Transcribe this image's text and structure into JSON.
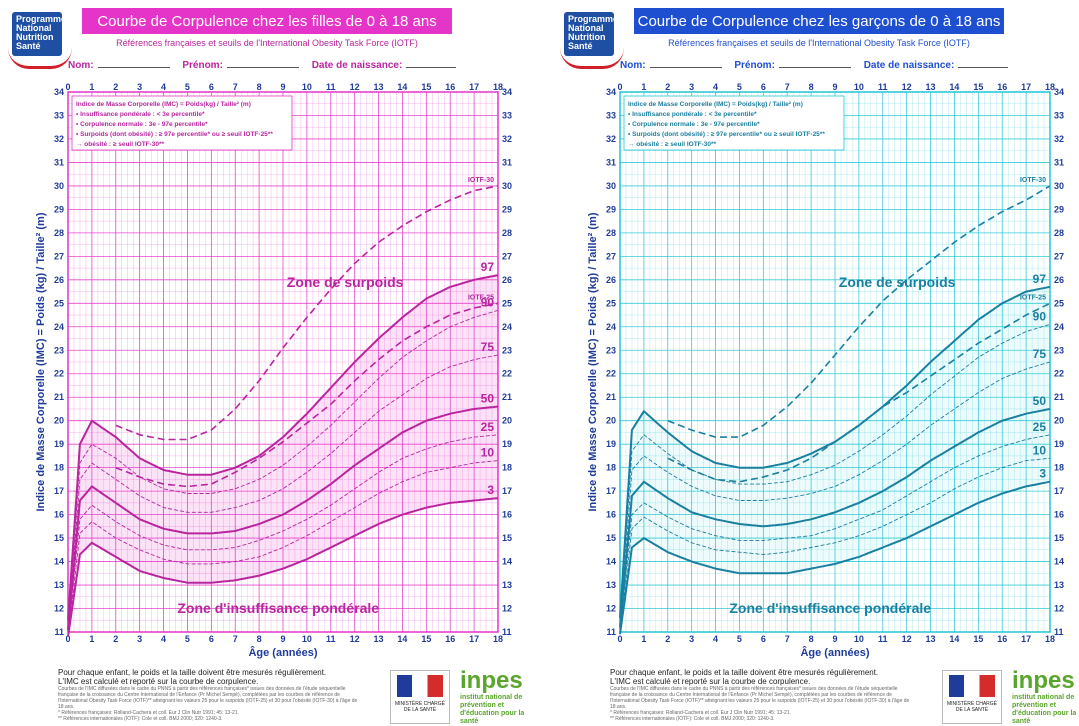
{
  "colors": {
    "girls": "#e535c8",
    "boys": "#22c6d6",
    "girls_dark": "#b8259e",
    "boys_dark": "#1a7fa0",
    "logo_blue": "#1f4fa3"
  },
  "common": {
    "logo_lines": [
      "Programme",
      "National",
      "Nutrition",
      "Santé"
    ],
    "subtitle": "Références françaises et seuils de l'International Obesity Task Force (IOTF)",
    "nom": "Nom:",
    "prenom": "Prénom:",
    "date_naissance": "Date de naissance:",
    "footer_main_1": "Pour chaque enfant, le poids et la taille doivent être mesurés régulièrement.",
    "footer_main_2": "L'IMC est calculé et reporté sur la courbe de corpulence.",
    "footer_small": "Courbes de l'IMC diffusées dans le cadre du PNNS à partir des références françaises* issues des données de l'étude séquentielle française de la croissance du Centre International de l'Enfance (Pr Michel Sempé), complétées par les courbes de référence de l'International Obesity Task Force (IOTF)** atteignant les valeurs 25 pour le surpoids (IOTF-25) et 30 pour l'obésité (IOTF-30) à l'âge de 18 ans.",
    "footer_ref1": "* Références françaises: Rolland-Cachera et coll. Eur J Clin Nutr 1991; 45: 13-21.",
    "footer_ref2": "** Références internationales (IOTF): Cole et coll. BMJ 2000; 320: 1240-3.",
    "flag_text": "MINISTÈRE CHARGÉ DE LA SANTÉ",
    "inpes_label": "inpes",
    "inpes_tag": "institut national de prévention et d'éducation pour la santé"
  },
  "chart_data": [
    {
      "type": "line",
      "title": "Courbe de Corpulence chez les filles de 0 à 18 ans",
      "xlabel": "Âge (années)",
      "ylabel": "Indice de Masse Corporelle (IMC) = Poids (kg) / Taille² (m)",
      "xlim": [
        0,
        18
      ],
      "ylim": [
        11,
        34
      ],
      "x_ticks": [
        0,
        1,
        2,
        3,
        4,
        5,
        6,
        7,
        8,
        9,
        10,
        11,
        12,
        13,
        14,
        15,
        16,
        17,
        18
      ],
      "y_ticks": [
        11,
        12,
        13,
        14,
        15,
        16,
        17,
        18,
        19,
        20,
        21,
        22,
        23,
        24,
        25,
        26,
        27,
        28,
        29,
        30,
        31,
        32,
        33,
        34
      ],
      "legend": [
        "Indice de Masse Corporelle (IMC) = Poids(kg) / Taille² (m)",
        "• Insuffisance pondérale : < 3e percentile*",
        "• Corpulence normale : 3e - 97e percentile*",
        "• Surpoids (dont obésité) : ≥ 97e percentile* ou ≥ seuil IOTF-25**",
        "→ obésité : ≥ seuil IOTF-30**"
      ],
      "zone_over": "Zone de surpoids",
      "zone_under": "Zone d'insuffisance pondérale",
      "x": [
        0,
        0.5,
        1,
        2,
        3,
        4,
        5,
        6,
        7,
        8,
        9,
        10,
        11,
        12,
        13,
        14,
        15,
        16,
        17,
        18
      ],
      "series": [
        {
          "name": "97",
          "style": "solid",
          "values": [
            11.5,
            19.0,
            20.0,
            19.3,
            18.4,
            17.9,
            17.7,
            17.7,
            18.0,
            18.5,
            19.3,
            20.3,
            21.4,
            22.5,
            23.5,
            24.4,
            25.2,
            25.7,
            26.0,
            26.2
          ]
        },
        {
          "name": "90",
          "style": "dash",
          "values": [
            11.3,
            18.2,
            19.0,
            18.4,
            17.6,
            17.1,
            16.9,
            16.9,
            17.1,
            17.5,
            18.1,
            18.9,
            19.8,
            20.8,
            21.8,
            22.7,
            23.4,
            24.0,
            24.4,
            24.7
          ]
        },
        {
          "name": "75",
          "style": "dash",
          "values": [
            11.2,
            17.5,
            18.2,
            17.5,
            16.8,
            16.3,
            16.1,
            16.1,
            16.3,
            16.6,
            17.1,
            17.8,
            18.6,
            19.5,
            20.4,
            21.1,
            21.8,
            22.3,
            22.6,
            22.8
          ]
        },
        {
          "name": "50",
          "style": "solid",
          "values": [
            11.1,
            16.6,
            17.2,
            16.5,
            15.8,
            15.4,
            15.2,
            15.2,
            15.3,
            15.6,
            16.0,
            16.6,
            17.3,
            18.1,
            18.8,
            19.5,
            20.0,
            20.3,
            20.5,
            20.6
          ]
        },
        {
          "name": "25",
          "style": "dash",
          "values": [
            11.0,
            15.8,
            16.4,
            15.7,
            15.1,
            14.7,
            14.5,
            14.5,
            14.6,
            14.9,
            15.3,
            15.8,
            16.4,
            17.1,
            17.8,
            18.4,
            18.8,
            19.1,
            19.3,
            19.4
          ]
        },
        {
          "name": "10",
          "style": "dash",
          "values": [
            10.9,
            15.2,
            15.7,
            15.0,
            14.5,
            14.1,
            13.9,
            13.9,
            14.0,
            14.2,
            14.6,
            15.1,
            15.7,
            16.3,
            16.9,
            17.4,
            17.8,
            18.0,
            18.2,
            18.3
          ]
        },
        {
          "name": "3",
          "style": "solid",
          "values": [
            10.8,
            14.3,
            14.8,
            14.2,
            13.6,
            13.3,
            13.1,
            13.1,
            13.2,
            13.4,
            13.7,
            14.1,
            14.6,
            15.1,
            15.6,
            16.0,
            16.3,
            16.5,
            16.6,
            16.7
          ]
        }
      ],
      "iotf": [
        {
          "name": "IOTF-30",
          "x": [
            2,
            3,
            4,
            5,
            6,
            7,
            8,
            9,
            10,
            11,
            12,
            13,
            14,
            15,
            16,
            17,
            18
          ],
          "values": [
            19.8,
            19.4,
            19.2,
            19.2,
            19.6,
            20.5,
            21.7,
            23.1,
            24.4,
            25.6,
            26.7,
            27.6,
            28.3,
            28.9,
            29.4,
            29.8,
            30.0
          ]
        },
        {
          "name": "IOTF-25",
          "x": [
            2,
            3,
            4,
            5,
            6,
            7,
            8,
            9,
            10,
            11,
            12,
            13,
            14,
            15,
            16,
            17,
            18
          ],
          "values": [
            18.0,
            17.6,
            17.3,
            17.2,
            17.3,
            17.8,
            18.4,
            19.1,
            19.9,
            20.7,
            21.7,
            22.6,
            23.4,
            24.0,
            24.5,
            24.8,
            25.0
          ]
        }
      ]
    },
    {
      "type": "line",
      "title": "Courbe de Corpulence chez les garçons de 0 à 18 ans",
      "xlabel": "Âge (années)",
      "ylabel": "Indice de Masse Corporelle (IMC) = Poids (kg) / Taille² (m)",
      "xlim": [
        0,
        18
      ],
      "ylim": [
        11,
        34
      ],
      "x_ticks": [
        0,
        1,
        2,
        3,
        4,
        5,
        6,
        7,
        8,
        9,
        10,
        11,
        12,
        13,
        14,
        15,
        16,
        17,
        18
      ],
      "y_ticks": [
        11,
        12,
        13,
        14,
        15,
        16,
        17,
        18,
        19,
        20,
        21,
        22,
        23,
        24,
        25,
        26,
        27,
        28,
        29,
        30,
        31,
        32,
        33,
        34
      ],
      "legend": [
        "Indice de Masse Corporelle (IMC) = Poids(kg) / Taille² (m)",
        "• Insuffisance pondérale : < 3e percentile*",
        "• Corpulence normale : 3e - 97e percentile*",
        "• Surpoids (dont obésité) : ≥ 97e percentile* ou ≥ seuil IOTF-25**",
        "→ obésité : ≥ seuil IOTF-30**"
      ],
      "zone_over": "Zone de surpoids",
      "zone_under": "Zone d'insuffisance pondérale",
      "x": [
        0,
        0.5,
        1,
        2,
        3,
        4,
        5,
        6,
        7,
        8,
        9,
        10,
        11,
        12,
        13,
        14,
        15,
        16,
        17,
        18
      ],
      "series": [
        {
          "name": "97",
          "style": "solid",
          "values": [
            11.6,
            19.6,
            20.4,
            19.5,
            18.7,
            18.2,
            18.0,
            18.0,
            18.2,
            18.6,
            19.1,
            19.8,
            20.6,
            21.5,
            22.5,
            23.4,
            24.3,
            25.0,
            25.5,
            25.7
          ]
        },
        {
          "name": "90",
          "style": "dash",
          "values": [
            11.4,
            18.7,
            19.4,
            18.6,
            17.9,
            17.5,
            17.3,
            17.3,
            17.4,
            17.7,
            18.1,
            18.7,
            19.4,
            20.2,
            21.1,
            21.9,
            22.7,
            23.3,
            23.8,
            24.1
          ]
        },
        {
          "name": "75",
          "style": "dash",
          "values": [
            11.3,
            17.9,
            18.5,
            17.8,
            17.2,
            16.8,
            16.6,
            16.6,
            16.7,
            16.9,
            17.2,
            17.7,
            18.3,
            19.0,
            19.8,
            20.5,
            21.2,
            21.8,
            22.2,
            22.5
          ]
        },
        {
          "name": "50",
          "style": "solid",
          "values": [
            11.2,
            16.8,
            17.4,
            16.7,
            16.1,
            15.8,
            15.6,
            15.5,
            15.6,
            15.8,
            16.1,
            16.5,
            17.0,
            17.6,
            18.3,
            18.9,
            19.5,
            20.0,
            20.3,
            20.5
          ]
        },
        {
          "name": "25",
          "style": "dash",
          "values": [
            11.1,
            16.0,
            16.5,
            15.9,
            15.4,
            15.1,
            14.9,
            14.9,
            15.0,
            15.1,
            15.4,
            15.8,
            16.2,
            16.8,
            17.4,
            18.0,
            18.5,
            18.9,
            19.2,
            19.4
          ]
        },
        {
          "name": "10",
          "style": "dash",
          "values": [
            11.0,
            15.4,
            15.9,
            15.3,
            14.8,
            14.5,
            14.4,
            14.3,
            14.4,
            14.6,
            14.8,
            15.1,
            15.5,
            16.0,
            16.5,
            17.1,
            17.6,
            18.0,
            18.3,
            18.4
          ]
        },
        {
          "name": "3",
          "style": "solid",
          "values": [
            10.9,
            14.6,
            15.0,
            14.4,
            14.0,
            13.7,
            13.5,
            13.5,
            13.5,
            13.7,
            13.9,
            14.2,
            14.6,
            15.0,
            15.5,
            16.0,
            16.5,
            16.9,
            17.2,
            17.4
          ]
        }
      ],
      "iotf": [
        {
          "name": "IOTF-30",
          "x": [
            2,
            3,
            4,
            5,
            6,
            7,
            8,
            9,
            10,
            11,
            12,
            13,
            14,
            15,
            16,
            17,
            18
          ],
          "values": [
            20.0,
            19.6,
            19.3,
            19.3,
            19.8,
            20.6,
            21.6,
            22.8,
            24.0,
            25.1,
            26.0,
            26.8,
            27.6,
            28.3,
            28.9,
            29.4,
            30.0
          ]
        },
        {
          "name": "IOTF-25",
          "x": [
            2,
            3,
            4,
            5,
            6,
            7,
            8,
            9,
            10,
            11,
            12,
            13,
            14,
            15,
            16,
            17,
            18
          ],
          "values": [
            18.4,
            17.9,
            17.5,
            17.4,
            17.6,
            17.9,
            18.4,
            19.1,
            19.8,
            20.6,
            21.2,
            21.9,
            22.6,
            23.3,
            23.9,
            24.5,
            25.0
          ]
        }
      ]
    }
  ]
}
